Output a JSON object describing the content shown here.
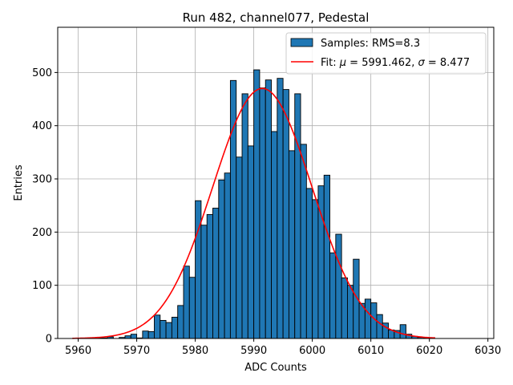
{
  "chart_data": {
    "type": "bar",
    "title": "Run 482, channel077, Pedestal",
    "xlabel": "ADC Counts",
    "ylabel": "Entries",
    "xlim": [
      5956.5,
      6031.0
    ],
    "ylim": [
      0,
      585
    ],
    "xticks": [
      5960,
      5970,
      5980,
      5990,
      6000,
      6010,
      6020,
      6030
    ],
    "yticks": [
      0,
      100,
      200,
      300,
      400,
      500
    ],
    "grid": true,
    "legend_position": "top-right",
    "bin_width": 1,
    "bin_starts": [
      5963,
      5964,
      5965,
      5966,
      5967,
      5968,
      5969,
      5970,
      5971,
      5972,
      5973,
      5974,
      5975,
      5976,
      5977,
      5978,
      5979,
      5980,
      5981,
      5982,
      5983,
      5984,
      5985,
      5986,
      5987,
      5988,
      5989,
      5990,
      5991,
      5992,
      5993,
      5994,
      5995,
      5996,
      5997,
      5998,
      5999,
      6000,
      6001,
      6002,
      6003,
      6004,
      6005,
      6006,
      6007,
      6008,
      6009,
      6010,
      6011,
      6012,
      6013,
      6014,
      6015,
      6016,
      6017,
      6018,
      6019
    ],
    "counts": [
      1,
      1,
      3,
      0,
      2,
      5,
      8,
      1,
      14,
      13,
      44,
      34,
      30,
      40,
      62,
      136,
      115,
      259,
      213,
      233,
      245,
      298,
      311,
      485,
      341,
      460,
      362,
      505,
      471,
      486,
      389,
      489,
      468,
      353,
      460,
      365,
      282,
      261,
      287,
      307,
      161,
      196,
      114,
      100,
      149,
      66,
      74,
      67,
      45,
      29,
      16,
      15,
      26,
      8,
      4,
      2,
      1
    ],
    "series": [
      {
        "name": "Samples: RMS=8.3",
        "type": "histogram",
        "color": "#1f77b4",
        "edgecolor": "#000000"
      },
      {
        "name_prefix": "Fit: ",
        "mu_symbol": "μ",
        "mu_value": " = 5991.462, ",
        "sigma_symbol": "σ",
        "sigma_value": " = 8.477",
        "type": "line",
        "color": "#ff0000",
        "mu": 5991.462,
        "sigma": 8.477,
        "amplitude": 470,
        "x_range": [
          5959.0,
          6021.0
        ]
      }
    ]
  }
}
